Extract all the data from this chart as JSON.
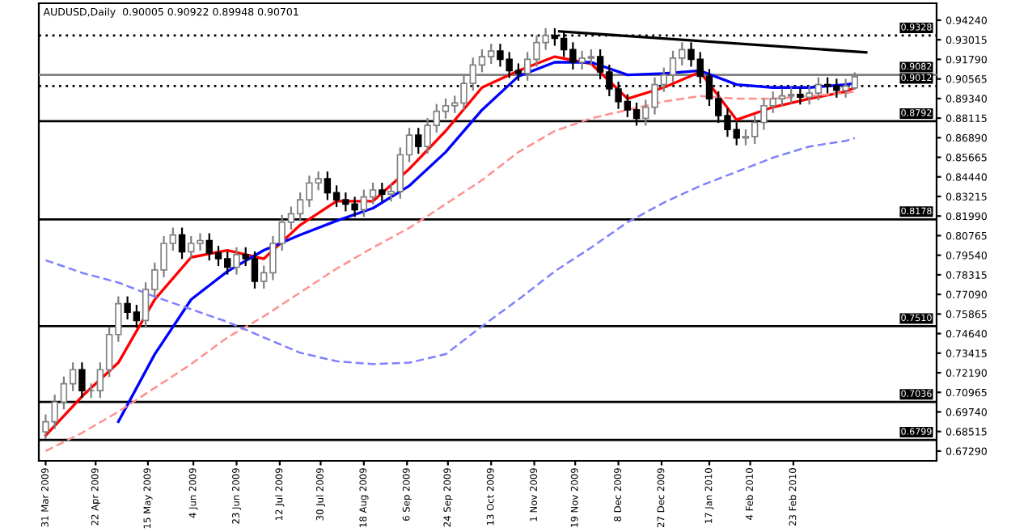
{
  "chart_data": {
    "type": "candlestick",
    "title": "AUDUSD,Daily  0.90005 0.90922 0.89948 0.90701",
    "x": [
      "2009-03-31",
      "2009-04-04",
      "2009-04-08",
      "2009-04-12",
      "2009-04-16",
      "2009-04-20",
      "2009-04-24",
      "2009-04-28",
      "2009-05-02",
      "2009-05-06",
      "2009-05-10",
      "2009-05-14",
      "2009-05-18",
      "2009-05-22",
      "2009-05-26",
      "2009-05-30",
      "2009-06-03",
      "2009-06-07",
      "2009-06-11",
      "2009-06-15",
      "2009-06-19",
      "2009-06-23",
      "2009-06-27",
      "2009-07-01",
      "2009-07-05",
      "2009-07-09",
      "2009-07-13",
      "2009-07-17",
      "2009-07-21",
      "2009-07-25",
      "2009-07-29",
      "2009-08-02",
      "2009-08-06",
      "2009-08-10",
      "2009-08-14",
      "2009-08-18",
      "2009-08-22",
      "2009-08-26",
      "2009-08-30",
      "2009-09-03",
      "2009-09-07",
      "2009-09-11",
      "2009-09-15",
      "2009-09-19",
      "2009-09-23",
      "2009-09-27",
      "2009-10-01",
      "2009-10-05",
      "2009-10-09",
      "2009-10-13",
      "2009-10-17",
      "2009-10-21",
      "2009-10-25",
      "2009-10-29",
      "2009-11-02",
      "2009-11-06",
      "2009-11-10",
      "2009-11-14",
      "2009-11-18",
      "2009-11-22",
      "2009-11-26",
      "2009-11-30",
      "2009-12-04",
      "2009-12-08",
      "2009-12-12",
      "2009-12-16",
      "2009-12-20",
      "2009-12-24",
      "2009-12-28",
      "2010-01-01",
      "2010-01-05",
      "2010-01-09",
      "2010-01-13",
      "2010-01-17",
      "2010-01-21",
      "2010-01-25",
      "2010-01-29",
      "2010-02-02",
      "2010-02-06",
      "2010-02-10",
      "2010-02-14",
      "2010-02-18",
      "2010-02-22",
      "2010-02-26",
      "2010-03-02",
      "2010-03-06",
      "2010-03-10",
      "2010-03-14",
      "2010-03-18",
      "2010-03-22"
    ],
    "ohlc": [
      [
        0.685,
        0.6953,
        0.681,
        0.6913
      ],
      [
        0.6913,
        0.7076,
        0.6873,
        0.7036
      ],
      [
        0.7036,
        0.719,
        0.6996,
        0.715
      ],
      [
        0.715,
        0.7278,
        0.711,
        0.7238
      ],
      [
        0.7238,
        0.7278,
        0.7067,
        0.7107
      ],
      [
        0.7107,
        0.7147,
        0.7067,
        0.7107
      ],
      [
        0.7107,
        0.7278,
        0.7067,
        0.7238
      ],
      [
        0.7238,
        0.7498,
        0.7198,
        0.7458
      ],
      [
        0.7458,
        0.7691,
        0.7418,
        0.7651
      ],
      [
        0.7651,
        0.7691,
        0.7558,
        0.7598
      ],
      [
        0.7598,
        0.7638,
        0.7506,
        0.7546
      ],
      [
        0.7546,
        0.7779,
        0.7506,
        0.7739
      ],
      [
        0.7739,
        0.7902,
        0.7699,
        0.7862
      ],
      [
        0.7862,
        0.8068,
        0.7822,
        0.8028
      ],
      [
        0.8028,
        0.8121,
        0.7988,
        0.8081
      ],
      [
        0.8081,
        0.8121,
        0.7936,
        0.7976
      ],
      [
        0.7976,
        0.8068,
        0.7936,
        0.8028
      ],
      [
        0.8028,
        0.8086,
        0.7988,
        0.8046
      ],
      [
        0.8046,
        0.8086,
        0.7927,
        0.7967
      ],
      [
        0.7967,
        0.8007,
        0.7892,
        0.7932
      ],
      [
        0.7932,
        0.7972,
        0.7839,
        0.7879
      ],
      [
        0.7879,
        0.7998,
        0.7839,
        0.7958
      ],
      [
        0.7958,
        0.7998,
        0.7892,
        0.7932
      ],
      [
        0.7932,
        0.7972,
        0.7751,
        0.7791
      ],
      [
        0.7791,
        0.7884,
        0.7751,
        0.7844
      ],
      [
        0.7844,
        0.8068,
        0.7804,
        0.8028
      ],
      [
        0.8028,
        0.82,
        0.7988,
        0.816
      ],
      [
        0.816,
        0.8253,
        0.812,
        0.8213
      ],
      [
        0.8213,
        0.8341,
        0.8173,
        0.8301
      ],
      [
        0.8301,
        0.8446,
        0.8261,
        0.8406
      ],
      [
        0.8406,
        0.8472,
        0.8366,
        0.8432
      ],
      [
        0.8432,
        0.8472,
        0.8305,
        0.8345
      ],
      [
        0.8345,
        0.8385,
        0.8261,
        0.8301
      ],
      [
        0.8301,
        0.8341,
        0.8234,
        0.8274
      ],
      [
        0.8274,
        0.8314,
        0.8199,
        0.8239
      ],
      [
        0.8239,
        0.8358,
        0.8199,
        0.8318
      ],
      [
        0.8318,
        0.8402,
        0.8278,
        0.8362
      ],
      [
        0.8362,
        0.8402,
        0.8296,
        0.8336
      ],
      [
        0.8336,
        0.8393,
        0.8296,
        0.8353
      ],
      [
        0.8353,
        0.8622,
        0.8313,
        0.8582
      ],
      [
        0.8582,
        0.8745,
        0.8542,
        0.8705
      ],
      [
        0.8705,
        0.8745,
        0.8594,
        0.8634
      ],
      [
        0.8634,
        0.8806,
        0.8594,
        0.8766
      ],
      [
        0.8766,
        0.8894,
        0.8726,
        0.8854
      ],
      [
        0.8854,
        0.8929,
        0.8814,
        0.8889
      ],
      [
        0.8889,
        0.8946,
        0.8849,
        0.8906
      ],
      [
        0.8906,
        0.9069,
        0.8866,
        0.9029
      ],
      [
        0.9029,
        0.9184,
        0.8989,
        0.9144
      ],
      [
        0.9144,
        0.9236,
        0.9104,
        0.9196
      ],
      [
        0.9196,
        0.9271,
        0.9156,
        0.9231
      ],
      [
        0.9231,
        0.9271,
        0.9139,
        0.9179
      ],
      [
        0.9179,
        0.9219,
        0.9068,
        0.9108
      ],
      [
        0.9108,
        0.9148,
        0.9051,
        0.9091
      ],
      [
        0.9091,
        0.9219,
        0.9051,
        0.9179
      ],
      [
        0.9179,
        0.9324,
        0.9139,
        0.9284
      ],
      [
        0.9284,
        0.9368,
        0.9244,
        0.9328
      ],
      [
        0.9328,
        0.9368,
        0.927,
        0.931
      ],
      [
        0.931,
        0.935,
        0.92,
        0.924
      ],
      [
        0.924,
        0.928,
        0.9121,
        0.9161
      ],
      [
        0.9161,
        0.9227,
        0.9121,
        0.9187
      ],
      [
        0.9187,
        0.9236,
        0.9147,
        0.9196
      ],
      [
        0.9196,
        0.9236,
        0.906,
        0.91
      ],
      [
        0.91,
        0.914,
        0.8954,
        0.8994
      ],
      [
        0.8994,
        0.9034,
        0.8875,
        0.8915
      ],
      [
        0.8915,
        0.8955,
        0.8823,
        0.8863
      ],
      [
        0.8863,
        0.8903,
        0.877,
        0.881
      ],
      [
        0.881,
        0.892,
        0.877,
        0.888
      ],
      [
        0.888,
        0.9061,
        0.884,
        0.9021
      ],
      [
        0.9021,
        0.9122,
        0.8981,
        0.9082
      ],
      [
        0.9082,
        0.9227,
        0.9042,
        0.9187
      ],
      [
        0.9187,
        0.928,
        0.9147,
        0.924
      ],
      [
        0.924,
        0.928,
        0.9139,
        0.9179
      ],
      [
        0.9179,
        0.9219,
        0.9033,
        0.9073
      ],
      [
        0.9073,
        0.9113,
        0.8893,
        0.8933
      ],
      [
        0.8933,
        0.8973,
        0.8787,
        0.8827
      ],
      [
        0.8827,
        0.8867,
        0.87,
        0.874
      ],
      [
        0.874,
        0.878,
        0.8647,
        0.8687
      ],
      [
        0.8687,
        0.8736,
        0.8647,
        0.8696
      ],
      [
        0.8696,
        0.8824,
        0.8656,
        0.8784
      ],
      [
        0.8784,
        0.8929,
        0.8744,
        0.8889
      ],
      [
        0.8889,
        0.8973,
        0.8849,
        0.8933
      ],
      [
        0.8933,
        0.899,
        0.8893,
        0.895
      ],
      [
        0.895,
        0.8999,
        0.891,
        0.8959
      ],
      [
        0.8959,
        0.8999,
        0.8902,
        0.8942
      ],
      [
        0.8942,
        0.9008,
        0.8902,
        0.8968
      ],
      [
        0.8968,
        0.9061,
        0.8928,
        0.9021
      ],
      [
        0.9021,
        0.9061,
        0.8972,
        0.9012
      ],
      [
        0.9012,
        0.9052,
        0.8945,
        0.8985
      ],
      [
        0.8985,
        0.9052,
        0.8945,
        0.9012
      ],
      [
        0.90005,
        0.90922,
        0.89948,
        0.90701
      ]
    ],
    "series": [
      {
        "type": "line",
        "color": "#ff0000",
        "line_style": "solid",
        "x": [
          "2009-03-31",
          "2009-04-16",
          "2009-05-02",
          "2009-05-18",
          "2009-06-03",
          "2009-06-19",
          "2009-07-05",
          "2009-07-21",
          "2009-08-06",
          "2009-08-22",
          "2009-09-07",
          "2009-09-23",
          "2009-10-09",
          "2009-10-25",
          "2009-11-10",
          "2009-11-26",
          "2009-12-12",
          "2009-12-28",
          "2010-01-13",
          "2010-01-29",
          "2010-02-14",
          "2010-03-02",
          "2010-03-18",
          "2010-03-22"
        ],
        "values": [
          0.6826,
          0.7071,
          0.7282,
          0.7677,
          0.7941,
          0.7985,
          0.7932,
          0.8143,
          0.8292,
          0.8292,
          0.8494,
          0.8731,
          0.9003,
          0.9108,
          0.9196,
          0.9152,
          0.8933,
          0.9003,
          0.91,
          0.8801,
          0.888,
          0.8933,
          0.8977,
          0.9003
        ]
      },
      {
        "type": "line",
        "color": "#0000ff",
        "line_style": "solid",
        "x": [
          "2009-05-02",
          "2009-05-18",
          "2009-06-03",
          "2009-06-19",
          "2009-07-05",
          "2009-07-21",
          "2009-08-06",
          "2009-08-22",
          "2009-09-07",
          "2009-09-23",
          "2009-10-09",
          "2009-10-25",
          "2009-11-10",
          "2009-11-26",
          "2009-12-12",
          "2009-12-28",
          "2010-01-13",
          "2010-01-29",
          "2010-02-14",
          "2010-03-02",
          "2010-03-18",
          "2010-03-22"
        ],
        "values": [
          0.6913,
          0.7335,
          0.7677,
          0.7853,
          0.7985,
          0.8081,
          0.8169,
          0.8248,
          0.8388,
          0.8599,
          0.8863,
          0.9073,
          0.9161,
          0.9161,
          0.9082,
          0.9091,
          0.9108,
          0.9021,
          0.9003,
          0.9003,
          0.9021,
          0.9029
        ]
      },
      {
        "type": "line",
        "color": "#ff9090",
        "line_style": "dashed",
        "x": [
          "2009-03-31",
          "2009-04-16",
          "2009-05-02",
          "2009-05-18",
          "2009-06-03",
          "2009-06-19",
          "2009-07-05",
          "2009-07-21",
          "2009-08-06",
          "2009-08-22",
          "2009-09-07",
          "2009-09-23",
          "2009-10-09",
          "2009-10-25",
          "2009-11-10",
          "2009-11-26",
          "2009-12-12",
          "2009-12-28",
          "2010-01-13",
          "2010-01-29",
          "2010-02-14",
          "2010-03-02",
          "2010-03-18",
          "2010-03-22"
        ],
        "values": [
          0.6729,
          0.6843,
          0.6975,
          0.7124,
          0.7273,
          0.744,
          0.7572,
          0.7721,
          0.787,
          0.8002,
          0.8125,
          0.8274,
          0.8424,
          0.8599,
          0.8731,
          0.881,
          0.8863,
          0.8915,
          0.895,
          0.8933,
          0.8933,
          0.895,
          0.8968,
          0.8977
        ]
      },
      {
        "type": "line",
        "color": "#8080ff",
        "line_style": "dashed",
        "x": [
          "2009-03-31",
          "2009-04-16",
          "2009-05-02",
          "2009-05-18",
          "2009-06-03",
          "2009-06-19",
          "2009-07-05",
          "2009-07-21",
          "2009-08-06",
          "2009-08-22",
          "2009-09-07",
          "2009-09-23",
          "2009-10-09",
          "2009-10-25",
          "2009-11-10",
          "2009-11-26",
          "2009-12-12",
          "2009-12-28",
          "2010-01-13",
          "2010-01-29",
          "2010-02-14",
          "2010-03-02",
          "2010-03-18",
          "2010-03-22"
        ],
        "values": [
          0.7923,
          0.7844,
          0.7783,
          0.7695,
          0.7616,
          0.7537,
          0.744,
          0.7344,
          0.7291,
          0.7273,
          0.7282,
          0.7335,
          0.751,
          0.7677,
          0.7853,
          0.8002,
          0.816,
          0.8283,
          0.8388,
          0.8476,
          0.8564,
          0.8634,
          0.8669,
          0.8687
        ]
      },
      {
        "type": "line",
        "color": "#000000",
        "line_style": "solid",
        "x": [
          "2009-11-12",
          "2010-03-27"
        ],
        "values": [
          0.9354,
          0.9223
        ]
      }
    ],
    "ref_lines": [
      {
        "axis": "y",
        "value": 0.9328,
        "label": "0.9328",
        "color": "#000000",
        "line_style": "dotted"
      },
      {
        "axis": "y",
        "value": 0.9082,
        "label": "0.9082",
        "color": "#808080",
        "line_style": "solid"
      },
      {
        "axis": "y",
        "value": 0.9012,
        "label": "0.9012",
        "color": "#000000",
        "line_style": "dotted"
      },
      {
        "axis": "y",
        "value": 0.8792,
        "label": "0.8792",
        "color": "#000000",
        "line_style": "solid"
      },
      {
        "axis": "y",
        "value": 0.8178,
        "label": "0.8178",
        "color": "#000000",
        "line_style": "solid"
      },
      {
        "axis": "y",
        "value": 0.751,
        "label": "0.7510",
        "color": "#000000",
        "line_style": "solid"
      },
      {
        "axis": "y",
        "value": 0.7036,
        "label": "0.7036",
        "color": "#000000",
        "line_style": "solid"
      },
      {
        "axis": "y",
        "value": 0.6799,
        "label": "0.6799",
        "color": "#000000",
        "line_style": "solid"
      }
    ],
    "xlim": [
      "2009-03-28",
      "2010-04-27"
    ],
    "xticks": [
      {
        "value": "2009-03-31",
        "label": "31 Mar 2009"
      },
      {
        "value": "2009-04-22",
        "label": "22 Apr 2009"
      },
      {
        "value": "2009-05-15",
        "label": "15 May 2009"
      },
      {
        "value": "2009-06-04",
        "label": "4 Jun 2009"
      },
      {
        "value": "2009-06-23",
        "label": "23 Jun 2009"
      },
      {
        "value": "2009-07-12",
        "label": "12 Jul 2009"
      },
      {
        "value": "2009-07-30",
        "label": "30 Jul 2009"
      },
      {
        "value": "2009-08-18",
        "label": "18 Aug 2009"
      },
      {
        "value": "2009-09-06",
        "label": "6 Sep 2009"
      },
      {
        "value": "2009-09-24",
        "label": "24 Sep 2009"
      },
      {
        "value": "2009-10-13",
        "label": "13 Oct 2009"
      },
      {
        "value": "2009-11-01",
        "label": "1 Nov 2009"
      },
      {
        "value": "2009-11-19",
        "label": "19 Nov 2009"
      },
      {
        "value": "2009-12-08",
        "label": "8 Dec 2009"
      },
      {
        "value": "2009-12-27",
        "label": "27 Dec 2009"
      },
      {
        "value": "2010-01-17",
        "label": "17 Jan 2010"
      },
      {
        "value": "2010-02-04",
        "label": "4 Feb 2010"
      },
      {
        "value": "2010-02-23",
        "label": "23 Feb 2010"
      }
    ],
    "ylim": [
      0.6668,
      0.953
    ],
    "yticks": [
      {
        "value": 0.6729,
        "label": "0.67290"
      },
      {
        "value": 0.68515,
        "label": "0.68515"
      },
      {
        "value": 0.6974,
        "label": "0.69740"
      },
      {
        "value": 0.70965,
        "label": "0.70965"
      },
      {
        "value": 0.7219,
        "label": "0.72190"
      },
      {
        "value": 0.73415,
        "label": "0.73415"
      },
      {
        "value": 0.7464,
        "label": "0.74640"
      },
      {
        "value": 0.75865,
        "label": "0.75865"
      },
      {
        "value": 0.7709,
        "label": "0.77090"
      },
      {
        "value": 0.78315,
        "label": "0.78315"
      },
      {
        "value": 0.7954,
        "label": "0.79540"
      },
      {
        "value": 0.80765,
        "label": "0.80765"
      },
      {
        "value": 0.8199,
        "label": "0.81990"
      },
      {
        "value": 0.83215,
        "label": "0.83215"
      },
      {
        "value": 0.8444,
        "label": "0.84440"
      },
      {
        "value": 0.85665,
        "label": "0.85665"
      },
      {
        "value": 0.8689,
        "label": "0.86890"
      },
      {
        "value": 0.88115,
        "label": "0.88115"
      },
      {
        "value": 0.8934,
        "label": "0.89340"
      },
      {
        "value": 0.90565,
        "label": "0.90565"
      },
      {
        "value": 0.9179,
        "label": "0.91790"
      },
      {
        "value": 0.93015,
        "label": "0.93015"
      },
      {
        "value": 0.9424,
        "label": "0.94240"
      }
    ]
  }
}
